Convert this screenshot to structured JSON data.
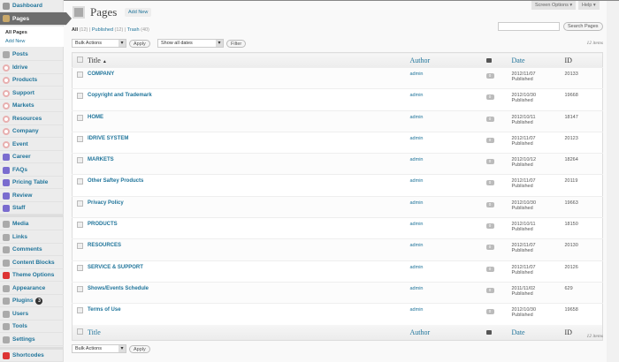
{
  "sidebar": {
    "items": [
      {
        "label": "Dashboard",
        "icon": "dashboard-icon",
        "color": "#999"
      },
      {
        "label": "Pages",
        "icon": "pages-icon",
        "color": "#c9a86a"
      },
      {
        "label": "Posts",
        "icon": "posts-icon",
        "color": "#aaa"
      },
      {
        "label": "Idrive",
        "icon": "plugin-circle-icon",
        "color": "#e8b0b0"
      },
      {
        "label": "Products",
        "icon": "plugin-circle-icon",
        "color": "#e8b0b0"
      },
      {
        "label": "Support",
        "icon": "plugin-circle-icon",
        "color": "#e8b0b0"
      },
      {
        "label": "Markets",
        "icon": "plugin-circle-icon",
        "color": "#e8b0b0"
      },
      {
        "label": "Resources",
        "icon": "plugin-circle-icon",
        "color": "#e8b0b0"
      },
      {
        "label": "Company",
        "icon": "plugin-circle-icon",
        "color": "#e8b0b0"
      },
      {
        "label": "Event",
        "icon": "plugin-circle-icon",
        "color": "#e8b0b0"
      },
      {
        "label": "Career",
        "icon": "blocks-icon",
        "color": "#7a6ccf"
      },
      {
        "label": "FAQs",
        "icon": "blocks-icon",
        "color": "#7a6ccf"
      },
      {
        "label": "Pricing Table",
        "icon": "blocks-icon",
        "color": "#7a6ccf"
      },
      {
        "label": "Review",
        "icon": "blocks-icon",
        "color": "#7a6ccf"
      },
      {
        "label": "Staff",
        "icon": "blocks-icon",
        "color": "#7a6ccf"
      },
      {
        "label": "Media",
        "icon": "media-icon",
        "color": "#aaa"
      },
      {
        "label": "Links",
        "icon": "links-icon",
        "color": "#aaa"
      },
      {
        "label": "Comments",
        "icon": "comments-icon",
        "color": "#aaa"
      },
      {
        "label": "Content Blocks",
        "icon": "content-blocks-icon",
        "color": "#aaa"
      },
      {
        "label": "Theme Options",
        "icon": "theme-options-icon",
        "color": "#d33"
      },
      {
        "label": "Appearance",
        "icon": "appearance-icon",
        "color": "#aaa"
      },
      {
        "label": "Plugins",
        "icon": "plugins-icon",
        "color": "#aaa",
        "badge": "3"
      },
      {
        "label": "Users",
        "icon": "users-icon",
        "color": "#aaa"
      },
      {
        "label": "Tools",
        "icon": "tools-icon",
        "color": "#aaa"
      },
      {
        "label": "Settings",
        "icon": "settings-icon",
        "color": "#aaa"
      },
      {
        "label": "Shortcodes",
        "icon": "shortcodes-icon",
        "color": "#d33"
      }
    ],
    "submenu": [
      "All Pages",
      "Add New"
    ]
  },
  "header": {
    "screen_options": "Screen Options ▾",
    "help": "Help ▾",
    "title": "Pages",
    "add_new": "Add New",
    "search_button": "Search Pages",
    "search_value": ""
  },
  "filters": {
    "all": "All",
    "all_count": "(12)",
    "published": "Published",
    "published_count": "(12)",
    "trash": "Trash",
    "trash_count": "(40)"
  },
  "actions": {
    "bulk": "Bulk Actions",
    "apply": "Apply",
    "dates": "Show all dates",
    "filter": "Filter",
    "items": "12 items"
  },
  "columns": {
    "title": "Title",
    "sort": "▲",
    "author": "Author",
    "date": "Date",
    "id": "ID"
  },
  "rows": [
    {
      "title": "COMPANY",
      "author": "admin",
      "comments": "0",
      "date": "2012/11/07",
      "status": "Published",
      "id": "20133"
    },
    {
      "title": "Copyright and Trademark",
      "author": "admin",
      "comments": "0",
      "date": "2012/10/30",
      "status": "Published",
      "id": "19668"
    },
    {
      "title": "HOME",
      "author": "admin",
      "comments": "0",
      "date": "2012/10/11",
      "status": "Published",
      "id": "18147"
    },
    {
      "title": "IDRIVE SYSTEM",
      "author": "admin",
      "comments": "0",
      "date": "2012/11/07",
      "status": "Published",
      "id": "20123"
    },
    {
      "title": "MARKETS",
      "author": "admin",
      "comments": "0",
      "date": "2012/10/12",
      "status": "Published",
      "id": "18264"
    },
    {
      "title": "Other Saftey Products",
      "author": "admin",
      "comments": "0",
      "date": "2012/11/07",
      "status": "Published",
      "id": "20119"
    },
    {
      "title": "Privacy Policy",
      "author": "admin",
      "comments": "0",
      "date": "2012/10/30",
      "status": "Published",
      "id": "19663"
    },
    {
      "title": "PRODUCTS",
      "author": "admin",
      "comments": "0",
      "date": "2012/10/11",
      "status": "Published",
      "id": "18150"
    },
    {
      "title": "RESOURCES",
      "author": "admin",
      "comments": "0",
      "date": "2012/11/07",
      "status": "Published",
      "id": "20130"
    },
    {
      "title": "SERVICE & SUPPORT",
      "author": "admin",
      "comments": "0",
      "date": "2012/11/07",
      "status": "Published",
      "id": "20126"
    },
    {
      "title": "Shows/Events Schedule",
      "author": "admin",
      "comments": "0",
      "date": "2011/11/02",
      "status": "Published",
      "id": "629"
    },
    {
      "title": "Terms of Use",
      "author": "admin",
      "comments": "0",
      "date": "2012/10/30",
      "status": "Published",
      "id": "19658"
    }
  ]
}
